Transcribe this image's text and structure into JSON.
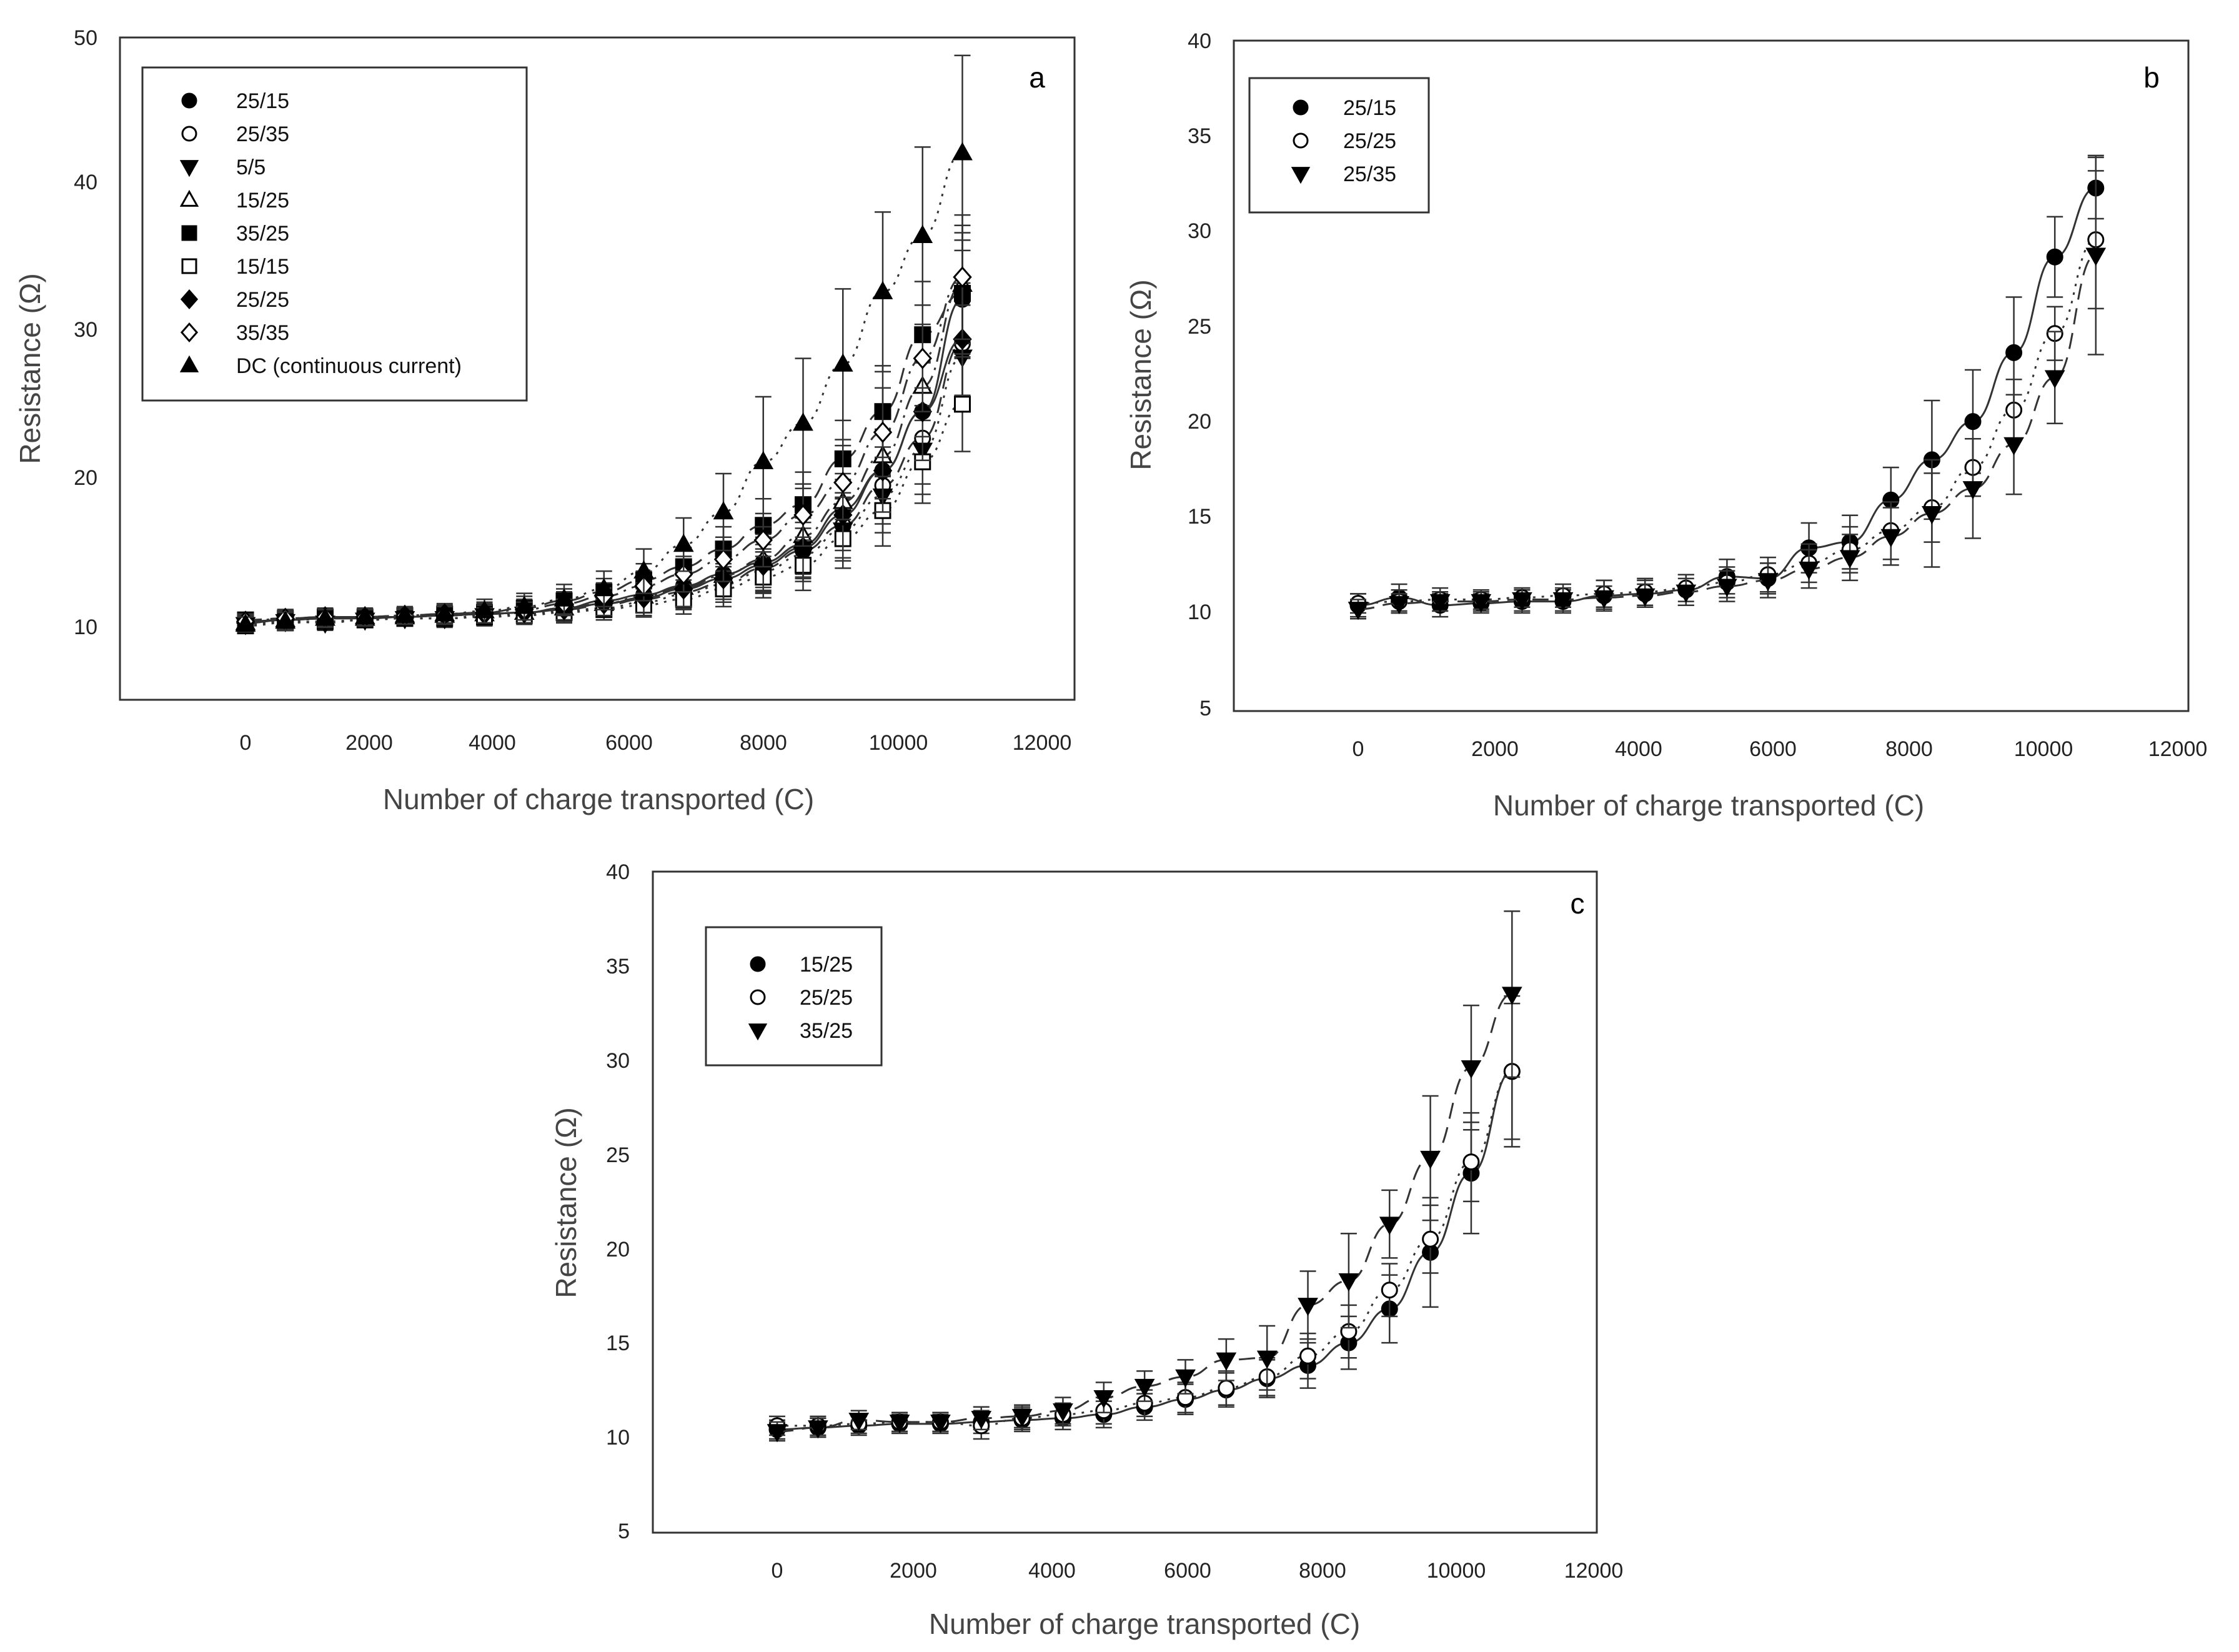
{
  "chart_data": [
    {
      "type": "scatter",
      "panel": "a",
      "xlabel": "Number of charge transported (C)",
      "ylabel": "Resistance (Ω)",
      "xlim": [
        -1800,
        12000
      ],
      "ylim": [
        5,
        50
      ],
      "xticks": [
        0,
        2000,
        4000,
        6000,
        8000,
        10000,
        12000
      ],
      "yticks": [
        10,
        20,
        30,
        40,
        50
      ],
      "legend_position": "top-left",
      "x": [
        0,
        600,
        1200,
        1800,
        2400,
        3000,
        3600,
        4200,
        4800,
        5400,
        6000,
        6600,
        7200,
        7800,
        8400,
        9000,
        9600,
        10200,
        10800
      ],
      "series": [
        {
          "name": "25/15",
          "marker": "circle-filled",
          "line": "solid",
          "values": [
            10.4,
            10.5,
            10.6,
            10.6,
            10.7,
            10.8,
            10.9,
            11.0,
            11.3,
            11.8,
            12.2,
            12.8,
            13.6,
            14.4,
            15.6,
            18.0,
            20.6,
            24.6,
            32.2
          ],
          "errors": [
            0.5,
            0.6,
            0.6,
            0.5,
            0.5,
            0.6,
            0.7,
            0.7,
            0.7,
            0.8,
            1.0,
            1.2,
            1.4,
            1.7,
            2.0,
            2.4,
            2.8,
            3.4,
            4.0
          ]
        },
        {
          "name": "25/35",
          "marker": "circle-open",
          "line": "dash",
          "values": [
            10.5,
            10.6,
            10.6,
            10.7,
            10.8,
            10.8,
            10.9,
            11.0,
            11.2,
            11.5,
            11.9,
            12.4,
            13.0,
            14.0,
            15.2,
            16.9,
            19.6,
            22.8,
            29.2
          ],
          "errors": [
            0.5,
            0.6,
            0.5,
            0.5,
            0.5,
            0.6,
            0.6,
            0.7,
            0.7,
            0.8,
            0.9,
            1.1,
            1.3,
            1.6,
            1.9,
            2.2,
            2.6,
            3.1,
            3.6
          ]
        },
        {
          "name": "5/5",
          "marker": "triangle-down-filled",
          "line": "dot",
          "values": [
            10.2,
            10.4,
            10.3,
            10.5,
            10.6,
            10.6,
            10.8,
            10.9,
            11.1,
            11.3,
            11.7,
            12.2,
            12.9,
            13.8,
            14.9,
            16.6,
            18.9,
            22.0,
            28.3
          ],
          "errors": [
            0.5,
            0.5,
            0.5,
            0.5,
            0.5,
            0.6,
            0.6,
            0.6,
            0.7,
            0.8,
            0.9,
            1.0,
            1.2,
            1.5,
            1.8,
            2.1,
            2.5,
            3.0,
            3.5
          ]
        },
        {
          "name": "15/25",
          "marker": "triangle-up-open",
          "line": "dashdot",
          "values": [
            10.3,
            10.5,
            10.6,
            10.6,
            10.7,
            10.8,
            10.9,
            11.0,
            11.3,
            11.6,
            12.1,
            12.7,
            13.5,
            14.6,
            16.2,
            18.5,
            21.6,
            26.3,
            33.2
          ],
          "errors": [
            0.5,
            0.6,
            0.6,
            0.5,
            0.5,
            0.6,
            0.6,
            0.7,
            0.7,
            0.8,
            1.0,
            1.2,
            1.4,
            1.7,
            2.0,
            2.4,
            2.9,
            3.4,
            4.0
          ]
        },
        {
          "name": "35/25",
          "marker": "square-filled",
          "line": "dash",
          "values": [
            10.5,
            10.6,
            10.7,
            10.7,
            10.8,
            10.9,
            11.0,
            11.3,
            11.8,
            12.4,
            13.2,
            14.1,
            15.3,
            16.9,
            18.3,
            21.4,
            24.6,
            29.8,
            32.6
          ],
          "errors": [
            0.5,
            0.6,
            0.6,
            0.5,
            0.5,
            0.6,
            0.7,
            0.8,
            0.8,
            0.9,
            1.1,
            1.3,
            1.5,
            1.8,
            2.2,
            2.6,
            3.1,
            3.6,
            4.1
          ]
        },
        {
          "name": "15/15",
          "marker": "square-open",
          "line": "dot",
          "values": [
            10.1,
            10.3,
            10.4,
            10.5,
            10.6,
            10.6,
            10.7,
            10.8,
            11.0,
            11.2,
            11.5,
            11.9,
            12.6,
            13.4,
            14.2,
            16.0,
            17.9,
            21.2,
            25.1
          ],
          "errors": [
            0.5,
            0.5,
            0.5,
            0.5,
            0.5,
            0.5,
            0.6,
            0.6,
            0.7,
            0.7,
            0.8,
            1.0,
            1.2,
            1.4,
            1.7,
            2.0,
            2.4,
            2.8,
            3.2
          ]
        },
        {
          "name": "25/25",
          "marker": "diamond-filled",
          "line": "solid",
          "values": [
            10.3,
            10.5,
            10.6,
            10.7,
            10.7,
            10.8,
            10.9,
            11.0,
            11.2,
            11.6,
            12.0,
            12.6,
            13.3,
            14.2,
            15.4,
            17.6,
            20.6,
            24.6,
            29.5
          ],
          "errors": [
            0.5,
            0.6,
            0.6,
            0.5,
            0.5,
            0.6,
            0.6,
            0.7,
            0.7,
            0.8,
            1.0,
            1.2,
            1.4,
            1.7,
            2.0,
            2.4,
            2.8,
            3.3,
            3.8
          ]
        },
        {
          "name": "35/35",
          "marker": "diamond-open",
          "line": "dashdot",
          "values": [
            10.4,
            10.6,
            10.7,
            10.7,
            10.8,
            10.9,
            11.0,
            11.2,
            11.6,
            12.1,
            12.8,
            13.6,
            14.6,
            15.9,
            17.6,
            19.8,
            23.2,
            28.2,
            33.7
          ],
          "errors": [
            0.5,
            0.6,
            0.6,
            0.5,
            0.5,
            0.6,
            0.7,
            0.7,
            0.8,
            0.9,
            1.0,
            1.2,
            1.5,
            1.8,
            2.1,
            2.5,
            3.0,
            3.6,
            4.2
          ]
        },
        {
          "name": "DC (continuous current)",
          "marker": "triangle-up-filled",
          "line": "dot",
          "values": [
            10.2,
            10.4,
            10.6,
            10.7,
            10.8,
            10.9,
            11.1,
            11.4,
            11.9,
            12.6,
            13.8,
            15.6,
            17.8,
            21.2,
            23.8,
            27.8,
            32.7,
            36.5,
            42.1
          ],
          "errors": [
            0.5,
            0.6,
            0.6,
            0.6,
            0.6,
            0.7,
            0.8,
            0.9,
            1.0,
            1.2,
            1.5,
            1.8,
            2.6,
            4.4,
            4.4,
            5.1,
            5.4,
            6.0,
            6.6
          ]
        }
      ]
    },
    {
      "type": "scatter",
      "panel": "b",
      "xlabel": "Number of charge transported (C)",
      "ylabel": "Resistance (Ω)",
      "xlim": [
        -1800,
        12000
      ],
      "ylim": [
        5,
        40
      ],
      "xticks": [
        0,
        2000,
        4000,
        6000,
        8000,
        10000,
        12000
      ],
      "yticks": [
        5,
        10,
        15,
        20,
        25,
        30,
        35,
        40
      ],
      "legend_position": "top-left",
      "x": [
        0,
        600,
        1200,
        1800,
        2400,
        3000,
        3600,
        4200,
        4800,
        5400,
        6000,
        6600,
        7200,
        7800,
        8400,
        9000,
        9600,
        10200,
        10800
      ],
      "series": [
        {
          "name": "25/15",
          "marker": "circle-filled",
          "line": "solid",
          "values": [
            10.4,
            10.8,
            10.4,
            10.5,
            10.6,
            10.6,
            10.9,
            11.0,
            11.2,
            11.9,
            11.8,
            13.4,
            13.7,
            15.9,
            18.0,
            20.0,
            23.6,
            28.6,
            32.2
          ],
          "errors": [
            0.6,
            0.7,
            0.6,
            0.5,
            0.6,
            0.6,
            0.8,
            0.7,
            0.8,
            0.9,
            0.8,
            1.3,
            1.4,
            1.7,
            3.1,
            2.7,
            2.9,
            2.1,
            1.6
          ]
        },
        {
          "name": "25/25",
          "marker": "circle-open",
          "line": "dot",
          "values": [
            10.5,
            10.6,
            10.7,
            10.7,
            10.8,
            10.9,
            11.0,
            11.1,
            11.3,
            11.6,
            12.0,
            12.6,
            13.3,
            14.3,
            15.5,
            17.6,
            20.6,
            24.6,
            29.5
          ],
          "errors": [
            0.5,
            0.6,
            0.6,
            0.5,
            0.5,
            0.6,
            0.7,
            0.7,
            0.7,
            0.8,
            0.9,
            1.0,
            1.2,
            1.5,
            1.8,
            1.5,
            1.6,
            1.4,
            3.6
          ]
        },
        {
          "name": "25/35",
          "marker": "triangle-down-filled",
          "line": "dash",
          "values": [
            10.2,
            10.5,
            10.6,
            10.6,
            10.7,
            10.7,
            10.8,
            10.9,
            11.1,
            11.4,
            11.7,
            12.3,
            12.9,
            14.0,
            15.2,
            16.5,
            18.8,
            22.3,
            28.7
          ],
          "errors": [
            0.5,
            0.5,
            0.5,
            0.5,
            0.6,
            0.6,
            0.6,
            0.6,
            0.7,
            0.8,
            0.9,
            1.0,
            1.2,
            1.5,
            2.8,
            2.6,
            2.6,
            2.4,
            5.2
          ]
        }
      ]
    },
    {
      "type": "scatter",
      "panel": "c",
      "xlabel": "Number of charge transported (C)",
      "ylabel": "Resistance (Ω)",
      "xlim": [
        -1800,
        12000
      ],
      "ylim": [
        5,
        40
      ],
      "xticks": [
        0,
        2000,
        4000,
        6000,
        8000,
        10000,
        12000
      ],
      "yticks": [
        5,
        10,
        15,
        20,
        25,
        30,
        35,
        40
      ],
      "legend_position": "top-left",
      "x": [
        0,
        600,
        1200,
        1800,
        2400,
        3000,
        3600,
        4200,
        4800,
        5400,
        6000,
        6600,
        7200,
        7800,
        8400,
        9000,
        9600,
        10200,
        10800
      ],
      "series": [
        {
          "name": "15/25",
          "marker": "circle-filled",
          "line": "solid",
          "values": [
            10.4,
            10.5,
            10.6,
            10.7,
            10.7,
            10.8,
            10.9,
            11.0,
            11.2,
            11.6,
            12.0,
            12.5,
            13.1,
            13.8,
            15.0,
            16.8,
            19.8,
            24.0,
            29.4
          ],
          "errors": [
            0.5,
            0.5,
            0.5,
            0.5,
            0.5,
            0.6,
            0.6,
            0.6,
            0.7,
            0.7,
            0.8,
            0.9,
            1.0,
            1.2,
            1.4,
            1.8,
            2.9,
            3.2,
            4.0
          ]
        },
        {
          "name": "25/25",
          "marker": "circle-open",
          "line": "dot",
          "values": [
            10.6,
            10.6,
            10.7,
            10.8,
            10.8,
            10.6,
            11.0,
            11.2,
            11.4,
            11.8,
            12.1,
            12.6,
            13.2,
            14.3,
            15.6,
            17.8,
            20.5,
            24.6,
            29.4
          ],
          "errors": [
            0.5,
            0.5,
            0.5,
            0.5,
            0.5,
            0.7,
            0.6,
            0.6,
            0.7,
            0.7,
            0.8,
            0.9,
            1.0,
            1.2,
            1.4,
            1.4,
            1.8,
            2.1,
            3.6
          ]
        },
        {
          "name": "35/25",
          "marker": "triangle-down-filled",
          "line": "dash",
          "values": [
            10.3,
            10.5,
            10.9,
            10.8,
            10.8,
            11.0,
            11.1,
            11.4,
            12.1,
            12.7,
            13.2,
            14.1,
            14.2,
            17.0,
            18.3,
            21.3,
            24.8,
            29.6,
            33.5
          ],
          "errors": [
            0.5,
            0.5,
            0.5,
            0.5,
            0.5,
            0.6,
            0.6,
            0.7,
            0.8,
            0.8,
            0.9,
            1.1,
            1.7,
            1.8,
            2.5,
            1.8,
            3.3,
            3.3,
            4.4
          ]
        }
      ]
    }
  ]
}
